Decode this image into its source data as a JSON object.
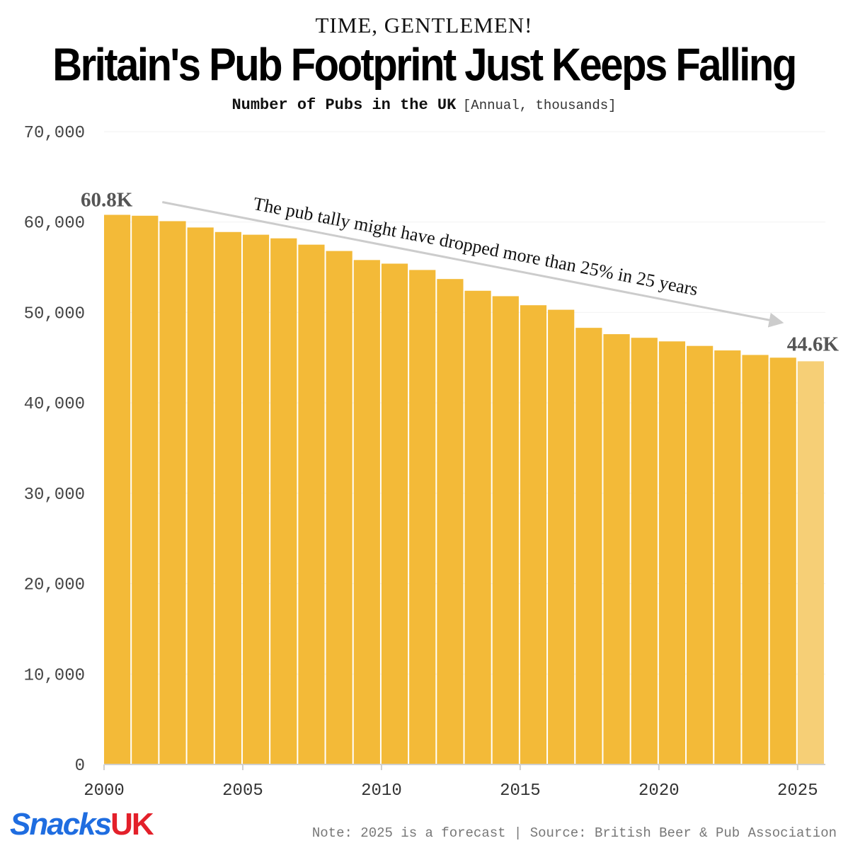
{
  "header": {
    "kicker": "TIME, GENTLEMEN!",
    "title": "Britain's Pub Footprint Just Keeps Falling",
    "subtitle": "Number of Pubs in the UK",
    "subtitle_unit": "[Annual, thousands]"
  },
  "footer": {
    "logo_main": "Snacks",
    "logo_accent": "UK",
    "note": "Note: 2025 is a forecast | Source: British Beer & Pub Association"
  },
  "colors": {
    "bar": "#f3ba38",
    "forecast_bar": "#f6cf76",
    "annotation_arrow": "#cccccc",
    "label": "#555555"
  },
  "chart_data": {
    "type": "bar",
    "title": "Britain's Pub Footprint Just Keeps Falling",
    "ylabel": "",
    "xlabel": "",
    "ylim": [
      0,
      70000
    ],
    "y_ticks": [
      0,
      10000,
      20000,
      30000,
      40000,
      50000,
      60000,
      70000
    ],
    "y_tick_labels": [
      "0",
      "10,000",
      "20,000",
      "30,000",
      "40,000",
      "50,000",
      "60,000",
      "70,000"
    ],
    "x_tick_labels": [
      "2000",
      "2005",
      "2010",
      "2015",
      "2020",
      "2025"
    ],
    "categories": [
      2000,
      2001,
      2002,
      2003,
      2004,
      2005,
      2006,
      2007,
      2008,
      2009,
      2010,
      2011,
      2012,
      2013,
      2014,
      2015,
      2016,
      2017,
      2018,
      2019,
      2020,
      2021,
      2022,
      2023,
      2024,
      2025
    ],
    "values": [
      60800,
      60700,
      60100,
      59400,
      58900,
      58600,
      58200,
      57500,
      56800,
      55800,
      55400,
      54700,
      53700,
      52400,
      51800,
      50800,
      50300,
      48300,
      47600,
      47200,
      46800,
      46300,
      45800,
      45300,
      45000,
      44600
    ],
    "forecast_categories": [
      2025
    ],
    "grid": "horizontal",
    "annotations": {
      "start_label": "60.8K",
      "end_label": "44.6K",
      "arrow_text": "The pub tally might have dropped more than 25% in 25 years"
    }
  }
}
